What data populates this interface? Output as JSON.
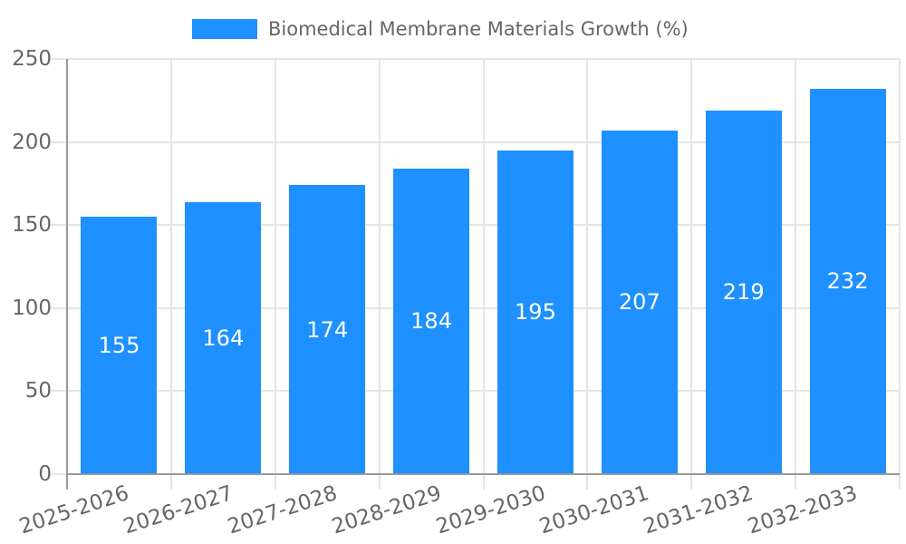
{
  "chart_data": {
    "type": "bar",
    "legend_label": "Biomedical Membrane Materials Growth (%)",
    "legend_position": "top-center",
    "categories": [
      "2025-2026",
      "2026-2027",
      "2027-2028",
      "2028-2029",
      "2029-2030",
      "2030-2031",
      "2031-2032",
      "2032-2033"
    ],
    "values": [
      155,
      164,
      174,
      184,
      195,
      207,
      219,
      232
    ],
    "yticks": [
      0,
      50,
      100,
      150,
      200,
      250
    ],
    "ylim": [
      0,
      250
    ],
    "grid": true,
    "x_label_rotation_deg": -18,
    "colors": {
      "bar": "#1E90FF",
      "grid": "#e5e5e5",
      "axis": "#9a9a9a",
      "tick_text": "#666666",
      "bar_value_text": "#ffffff",
      "background": "#ffffff"
    }
  }
}
